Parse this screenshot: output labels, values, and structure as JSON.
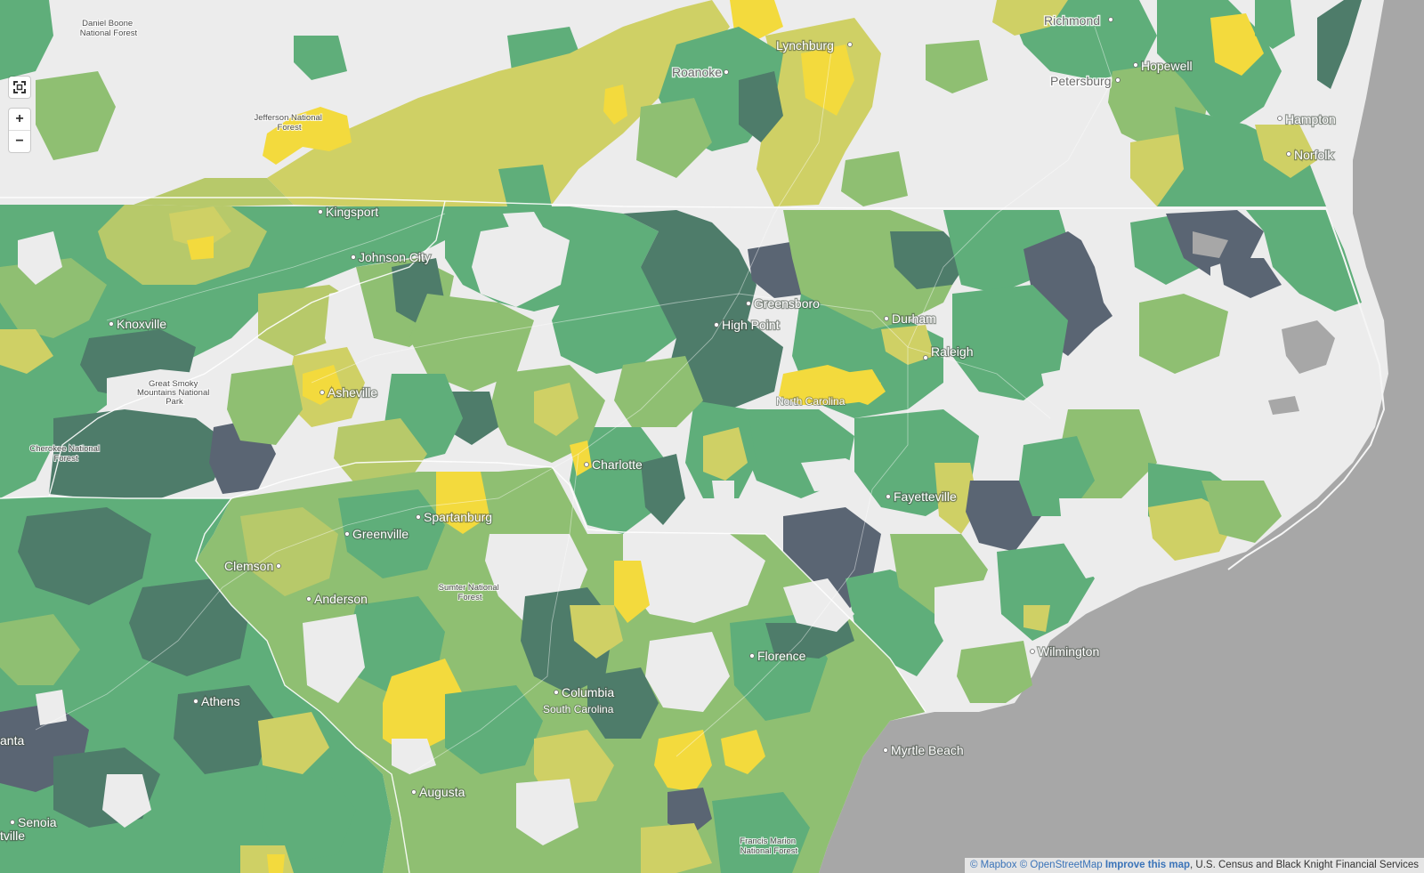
{
  "map": {
    "controls": {
      "fullscreen_icon": "fullscreen-icon",
      "zoom_in": "+",
      "zoom_out": "−"
    },
    "cities": [
      {
        "name": "Richmond"
      },
      {
        "name": "Lynchburg"
      },
      {
        "name": "Roanoke"
      },
      {
        "name": "Hopewell"
      },
      {
        "name": "Petersburg"
      },
      {
        "name": "Hampton"
      },
      {
        "name": "Norfolk"
      },
      {
        "name": "Kingsport"
      },
      {
        "name": "Johnson City"
      },
      {
        "name": "Knoxville"
      },
      {
        "name": "Greensboro"
      },
      {
        "name": "High Point"
      },
      {
        "name": "Durham"
      },
      {
        "name": "Raleigh"
      },
      {
        "name": "Asheville"
      },
      {
        "name": "Charlotte"
      },
      {
        "name": "Fayetteville"
      },
      {
        "name": "Spartanburg"
      },
      {
        "name": "Greenville"
      },
      {
        "name": "Clemson"
      },
      {
        "name": "Anderson"
      },
      {
        "name": "Florence"
      },
      {
        "name": "Wilmington"
      },
      {
        "name": "Columbia"
      },
      {
        "name": "Athens"
      },
      {
        "name": "Myrtle Beach"
      },
      {
        "name": "Augusta"
      },
      {
        "name": "Senoia"
      },
      {
        "name": "anta"
      },
      {
        "name": "tville"
      }
    ],
    "regions": [
      {
        "name": "North Carolina"
      },
      {
        "name": "South Carolina"
      }
    ],
    "parks": [
      {
        "lines": [
          "Daniel Boone",
          "National Forest"
        ]
      },
      {
        "lines": [
          "Jefferson National",
          "Forest"
        ]
      },
      {
        "lines": [
          "Great Smoky",
          "Mountains National",
          "Park"
        ]
      },
      {
        "lines": [
          "Cherokee National",
          "Forest"
        ]
      },
      {
        "lines": [
          "Sumter National",
          "Forest"
        ]
      },
      {
        "lines": [
          "Francis Marion",
          "National Forest"
        ]
      }
    ],
    "colors": {
      "ocean": "#a7a7a7",
      "land_nodata": "#ececec",
      "dark_slate": "#5a6573",
      "dark_green": "#4e7c6a",
      "green": "#5fae7a",
      "light_green": "#8fbf72",
      "olive": "#b7c96a",
      "yellow_green": "#cfd065",
      "yellow": "#f3da3d"
    },
    "attribution": {
      "mapbox": "© Mapbox",
      "osm": "© OpenStreetMap",
      "improve": "Improve this map",
      "sources": ", U.S. Census and Black Knight Financial Services"
    }
  }
}
